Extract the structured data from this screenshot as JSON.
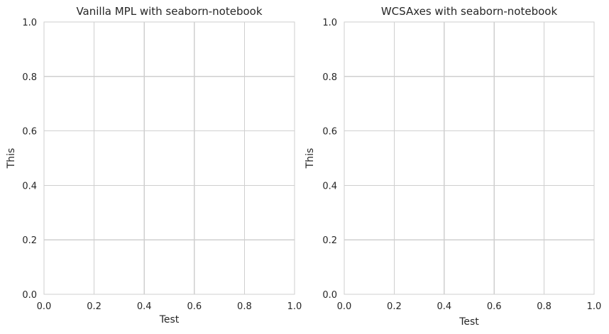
{
  "chart_data": [
    {
      "type": "line",
      "title": "Vanilla MPL with seaborn-notebook",
      "xlabel": "Test",
      "ylabel": "This",
      "xlim": [
        0.0,
        1.0
      ],
      "ylim": [
        0.0,
        1.0
      ],
      "x_ticks": [
        "0.0",
        "0.2",
        "0.4",
        "0.6",
        "0.8",
        "1.0"
      ],
      "y_ticks": [
        "0.0",
        "0.2",
        "0.4",
        "0.6",
        "0.8",
        "1.0"
      ],
      "grid": true,
      "series": []
    },
    {
      "type": "line",
      "title": "WCSAxes with seaborn-notebook",
      "xlabel": "Test",
      "ylabel": "This",
      "xlim": [
        0.0,
        1.0
      ],
      "ylim": [
        0.0,
        1.0
      ],
      "x_ticks": [
        "0.0",
        "0.2",
        "0.4",
        "0.6",
        "0.8",
        "1.0"
      ],
      "y_ticks": [
        "0.0",
        "0.2",
        "0.4",
        "0.6",
        "0.8",
        "1.0"
      ],
      "grid": true,
      "series": []
    }
  ],
  "colors": {
    "grid": "#cfcfcf",
    "text": "#262626",
    "background": "#ffffff"
  }
}
